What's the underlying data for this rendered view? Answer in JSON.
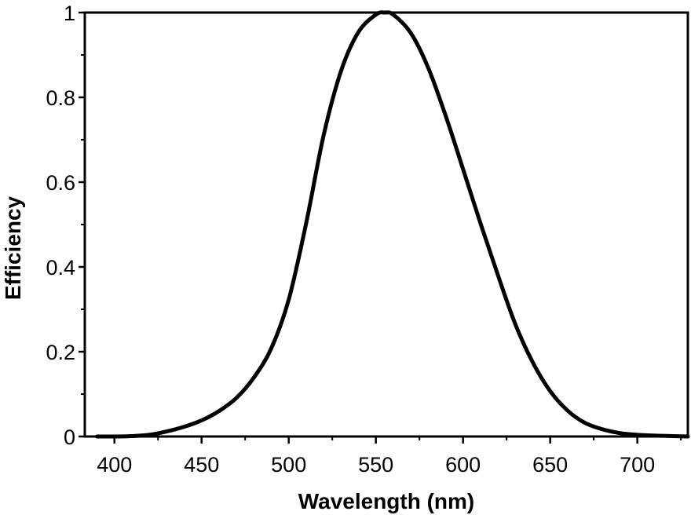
{
  "chart_data": {
    "type": "line",
    "title": "",
    "xlabel": "Wavelength (nm)",
    "ylabel": "Efficiency",
    "xlim": [
      383,
      729
    ],
    "ylim": [
      0,
      1
    ],
    "x_ticks": [
      400,
      450,
      500,
      550,
      600,
      650,
      700
    ],
    "x_tick_labels": [
      "400",
      "450",
      "500",
      "550",
      "600",
      "650",
      "700"
    ],
    "y_ticks": [
      0,
      0.2,
      0.4,
      0.6,
      0.8,
      1
    ],
    "y_tick_labels": [
      "0",
      "0.2",
      "0.4",
      "0.6",
      "0.8",
      "1"
    ],
    "grid": false,
    "series": [
      {
        "color": "#000000",
        "x": [
          390,
          400,
          410,
          420,
          430,
          440,
          450,
          460,
          470,
          480,
          490,
          500,
          510,
          520,
          530,
          540,
          550,
          555,
          560,
          570,
          580,
          590,
          600,
          610,
          620,
          630,
          640,
          650,
          660,
          670,
          680,
          690,
          700,
          710,
          720,
          729
        ],
        "y": [
          0.0,
          0.0,
          0.001,
          0.004,
          0.012,
          0.023,
          0.038,
          0.06,
          0.091,
          0.139,
          0.208,
          0.323,
          0.503,
          0.71,
          0.862,
          0.954,
          0.995,
          1.0,
          0.995,
          0.952,
          0.87,
          0.757,
          0.631,
          0.503,
          0.381,
          0.265,
          0.175,
          0.107,
          0.061,
          0.032,
          0.017,
          0.008,
          0.004,
          0.002,
          0.001,
          0.0
        ]
      }
    ]
  }
}
